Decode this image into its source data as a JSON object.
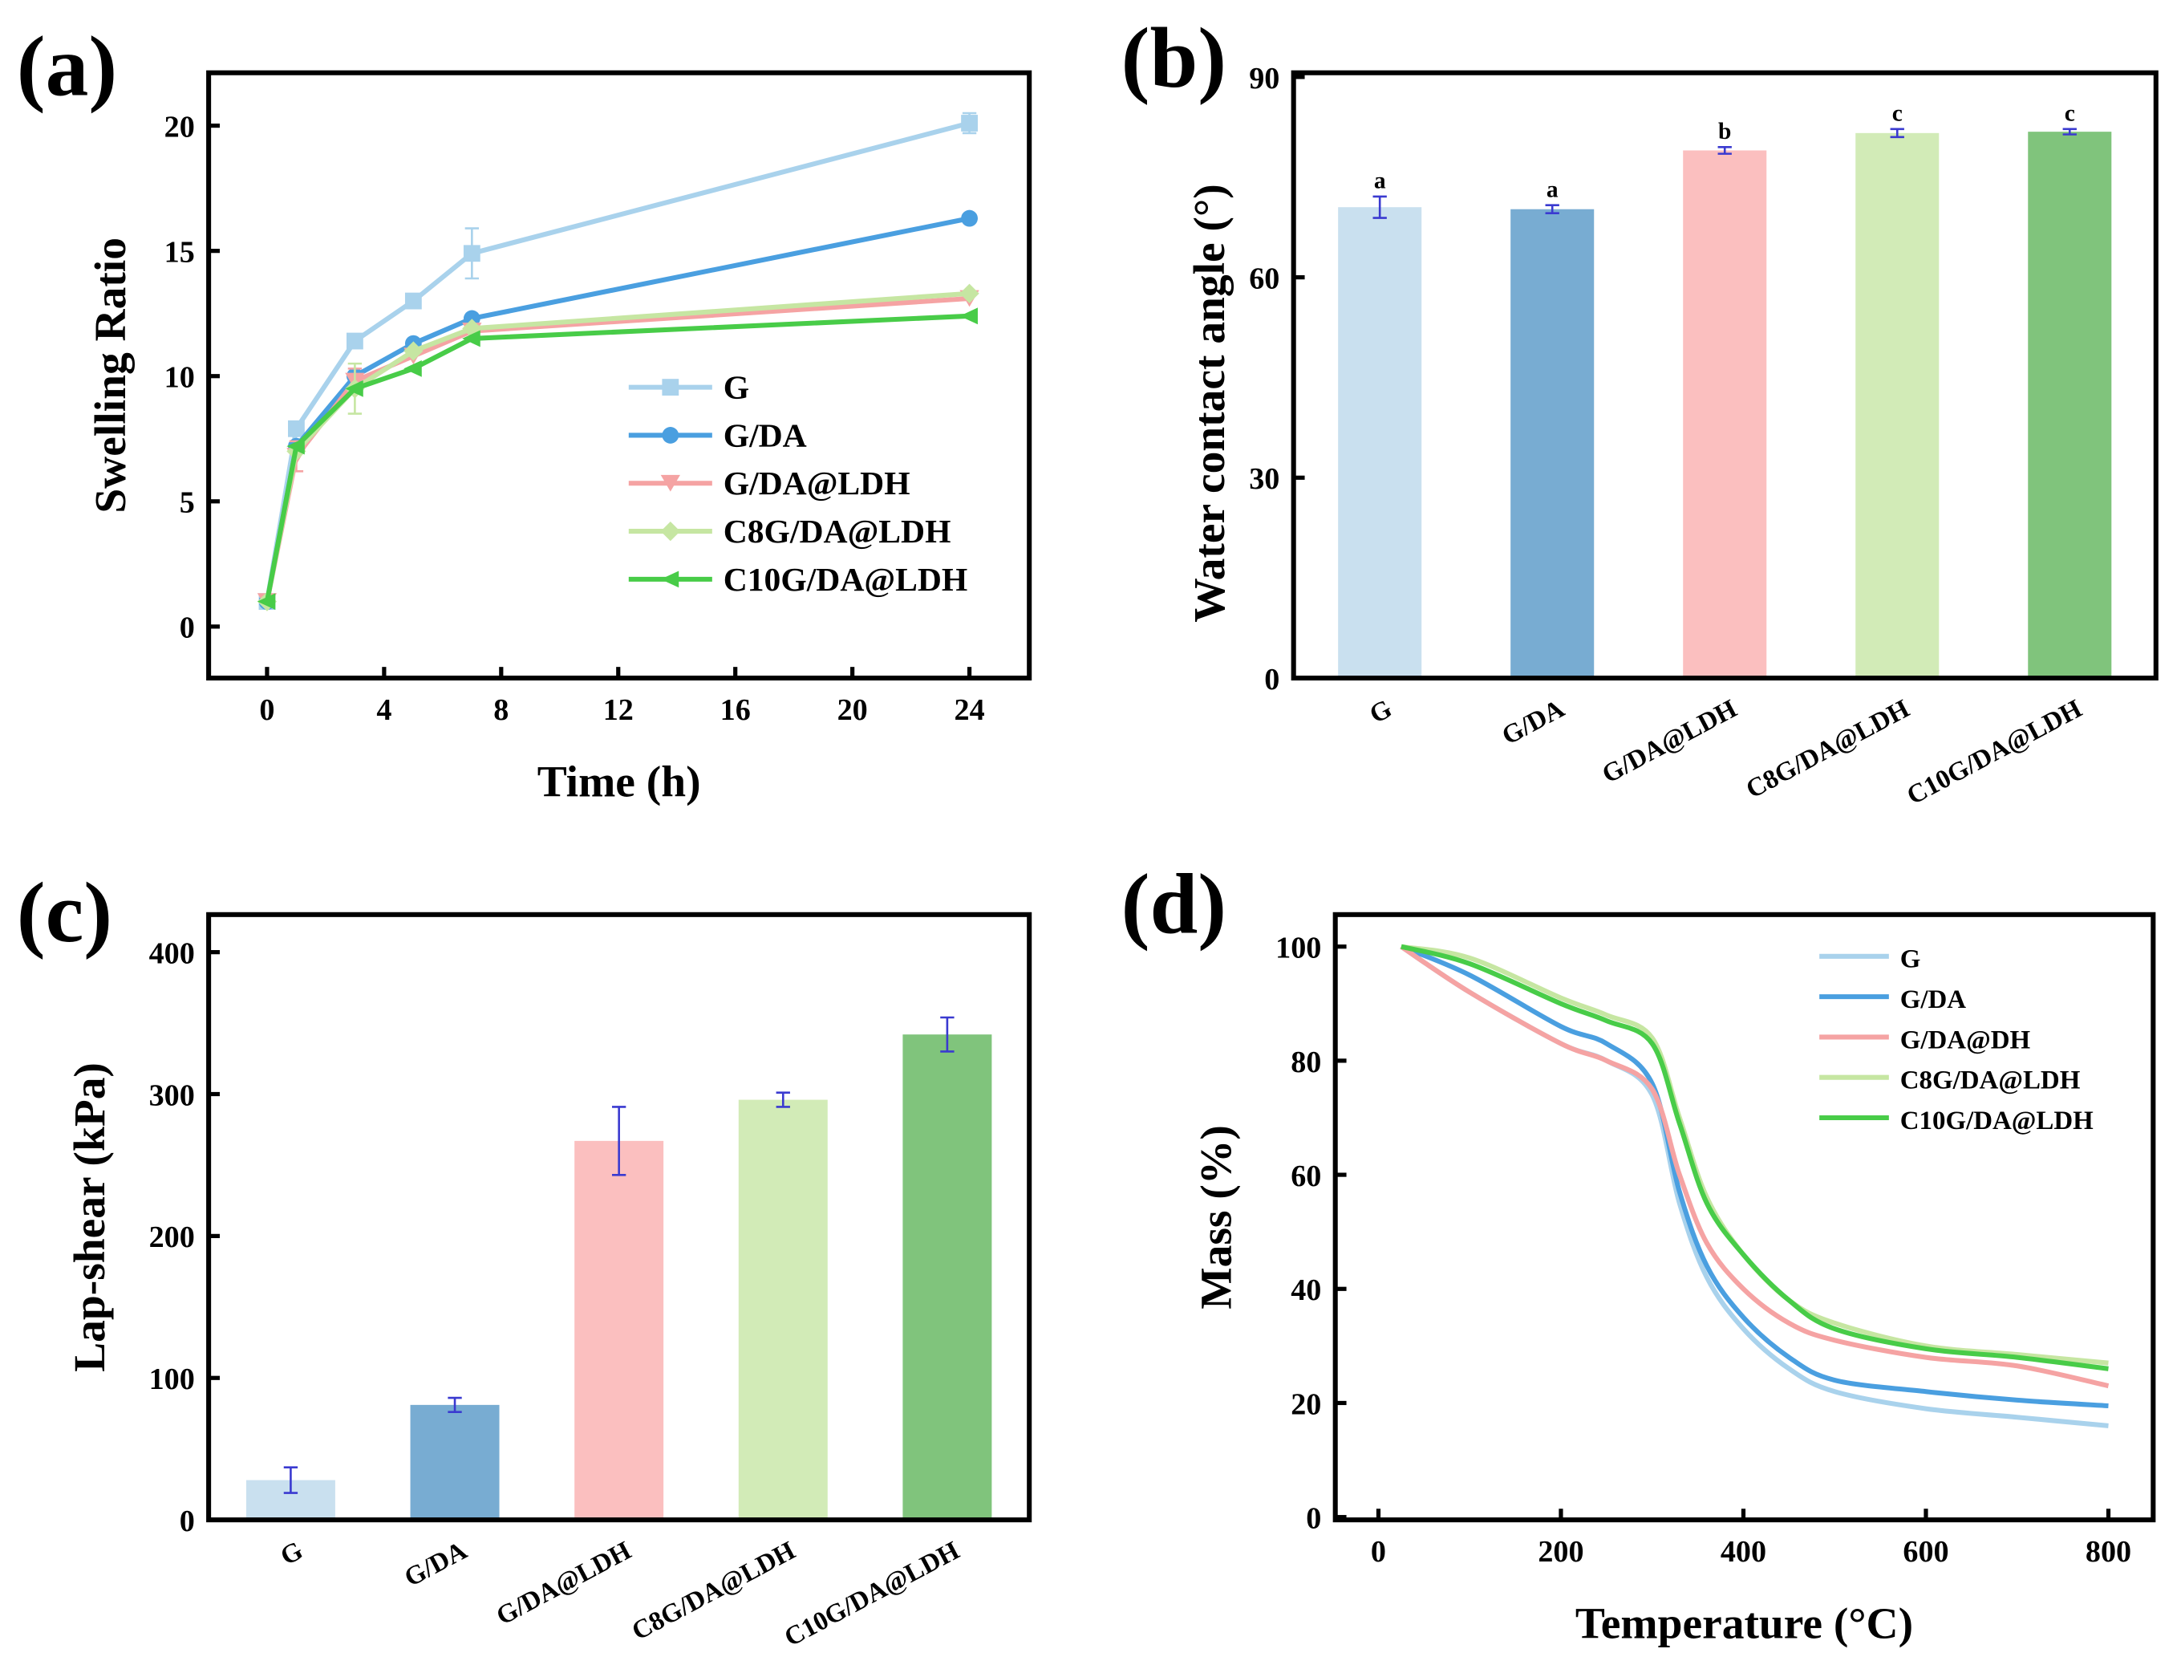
{
  "panel_labels": [
    "(a)",
    "(b)",
    "(c)",
    "(d)"
  ],
  "chart_data": [
    {
      "type": "line",
      "title": "",
      "xlabel": "Time (h)",
      "ylabel": "Swelling Ratio",
      "xlim": [
        -2,
        26
      ],
      "ylim": [
        -2,
        22
      ],
      "xticks": [
        0,
        4,
        8,
        12,
        16,
        20,
        24
      ],
      "yticks": [
        0,
        5,
        10,
        15,
        20
      ],
      "legend": "center-right",
      "x": [
        0,
        1,
        3,
        5,
        7,
        24
      ],
      "series": [
        {
          "name": "G",
          "color": "#a9d2ec",
          "marker": "square",
          "values": [
            1,
            7.9,
            11.4,
            13.0,
            14.9,
            20.1
          ],
          "errors": [
            0,
            0.2,
            0.2,
            0.2,
            1.0,
            0.4
          ]
        },
        {
          "name": "G/DA",
          "color": "#4a9fe0",
          "marker": "circle",
          "values": [
            1,
            7.2,
            10.0,
            11.3,
            12.3,
            16.3
          ],
          "errors": [
            0,
            0.2,
            0.2,
            0.2,
            0.2,
            0.2
          ]
        },
        {
          "name": "G/DA@LDH",
          "color": "#f5a3a3",
          "marker": "triangle-down",
          "values": [
            1,
            6.8,
            9.8,
            10.8,
            11.8,
            13.1
          ],
          "errors": [
            0,
            0.6,
            0.5,
            0.2,
            0.2,
            0.2
          ]
        },
        {
          "name": "C8G/DA@LDH",
          "color": "#c6e6a2",
          "marker": "diamond",
          "values": [
            1,
            7.0,
            9.5,
            11.0,
            11.9,
            13.3
          ],
          "errors": [
            0,
            0.3,
            1.0,
            0.2,
            0.2,
            0.2
          ]
        },
        {
          "name": "C10G/DA@LDH",
          "color": "#48cc48",
          "marker": "triangle-left",
          "values": [
            1,
            7.2,
            9.5,
            10.3,
            11.5,
            12.4
          ],
          "errors": [
            0,
            0.3,
            0.3,
            0.2,
            0.2,
            0.2
          ]
        }
      ]
    },
    {
      "type": "bar",
      "title": "",
      "xlabel": "",
      "ylabel": "Water contact angle (°)",
      "ylim": [
        0,
        90
      ],
      "yticks": [
        0,
        30,
        60,
        90
      ],
      "categories": [
        "G",
        "G/DA",
        "G/DA@LDH",
        "C8G/DA@LDH",
        "C10G/DA@LDH"
      ],
      "values": [
        70.5,
        70.2,
        79.0,
        81.6,
        81.8
      ],
      "errors": [
        1.6,
        0.6,
        0.5,
        0.6,
        0.4
      ],
      "significance": [
        "a",
        "a",
        "b",
        "c",
        "c"
      ],
      "colors": [
        "#c9e0ef",
        "#78acd2",
        "#fbbfbf",
        "#d2ebb7",
        "#80c47c"
      ]
    },
    {
      "type": "bar",
      "title": "",
      "xlabel": "",
      "ylabel": "Lap-shear (kPa)",
      "ylim": [
        0,
        425
      ],
      "yticks": [
        0,
        100,
        200,
        300,
        400
      ],
      "categories": [
        "G",
        "G/DA",
        "G/DA@LDH",
        "C8G/DA@LDH",
        "C10G/DA@LDH"
      ],
      "values": [
        28,
        81,
        267,
        296,
        342
      ],
      "errors": [
        9,
        5,
        24,
        5,
        12
      ],
      "colors": [
        "#c9e0ef",
        "#78acd2",
        "#fbbfbf",
        "#d2ebb7",
        "#80c47c"
      ]
    },
    {
      "type": "line",
      "title": "",
      "xlabel": "Temperature (°C)",
      "ylabel": "Mass (%)",
      "xlim": [
        -50,
        820
      ],
      "ylim": [
        0,
        105
      ],
      "xticks": [
        0,
        200,
        400,
        600,
        800
      ],
      "yticks": [
        0,
        20,
        40,
        60,
        80,
        100
      ],
      "legend": "top-right",
      "x": [
        25,
        100,
        200,
        250,
        300,
        330,
        360,
        400,
        450,
        500,
        600,
        700,
        800
      ],
      "series": [
        {
          "name": "G",
          "color": "#a9d2ec",
          "values": [
            100,
            92,
            83,
            80,
            74,
            55,
            42,
            33,
            26,
            22,
            19,
            17.5,
            16
          ]
        },
        {
          "name": "G/DA",
          "color": "#4a9fe0",
          "values": [
            100,
            95,
            86,
            83,
            76,
            57,
            44,
            35,
            28,
            24,
            22,
            20.5,
            19.5
          ]
        },
        {
          "name": "G/DA@DH",
          "color": "#f5a3a3",
          "values": [
            100,
            92,
            83,
            80,
            75,
            60,
            48,
            40,
            34,
            31,
            28,
            26.5,
            23
          ]
        },
        {
          "name": "C8G/DA@LDH",
          "color": "#c6e6a2",
          "values": [
            100,
            98,
            91,
            88,
            84,
            70,
            56,
            46,
            38,
            34,
            30,
            28.5,
            27
          ]
        },
        {
          "name": "C10G/DA@LDH",
          "color": "#48cc48",
          "values": [
            100,
            97,
            90,
            87,
            83,
            69,
            55,
            46,
            38,
            33,
            29.5,
            28,
            26
          ]
        }
      ]
    }
  ]
}
